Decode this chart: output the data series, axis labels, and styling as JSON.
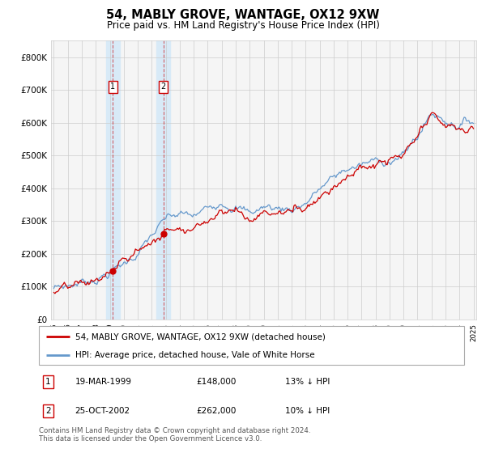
{
  "title": "54, MABLY GROVE, WANTAGE, OX12 9XW",
  "subtitle": "Price paid vs. HM Land Registry's House Price Index (HPI)",
  "legend_line1": "54, MABLY GROVE, WANTAGE, OX12 9XW (detached house)",
  "legend_line2": "HPI: Average price, detached house, Vale of White Horse",
  "footnote": "Contains HM Land Registry data © Crown copyright and database right 2024.\nThis data is licensed under the Open Government Licence v3.0.",
  "sale1_label": "1",
  "sale1_date": "19-MAR-1999",
  "sale1_price": "£148,000",
  "sale1_pct": "13% ↓ HPI",
  "sale2_label": "2",
  "sale2_date": "25-OCT-2002",
  "sale2_price": "£262,000",
  "sale2_pct": "10% ↓ HPI",
  "sale1_year": 1999.22,
  "sale2_year": 2002.82,
  "sale1_price_val": 148000,
  "sale2_price_val": 262000,
  "red_color": "#cc0000",
  "blue_color": "#6699cc",
  "shade_color": "#d8eaf7",
  "grid_color": "#cccccc",
  "bg_color": "#f0f0f0",
  "ylim": [
    0,
    850000
  ],
  "yticks": [
    0,
    100000,
    200000,
    300000,
    400000,
    500000,
    600000,
    700000,
    800000
  ],
  "ytick_labels": [
    "£0",
    "£100K",
    "£200K",
    "£300K",
    "£400K",
    "£500K",
    "£600K",
    "£700K",
    "£800K"
  ],
  "year_start": 1995,
  "year_end": 2025
}
